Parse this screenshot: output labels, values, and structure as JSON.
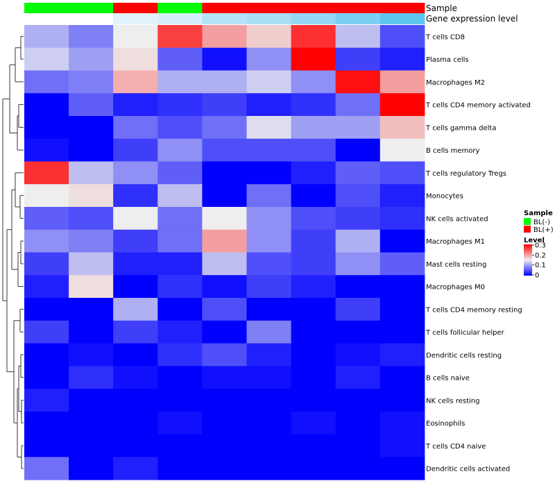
{
  "chart_data": {
    "type": "heatmap",
    "annotations": {
      "sample": {
        "label": "Sample",
        "values": [
          "BL(-)",
          "BL(-)",
          "BL(+)",
          "BL(-)",
          "BL(+)",
          "BL(+)",
          "BL(+)",
          "BL(+)",
          "BL(+)"
        ]
      },
      "gene_expression_level": {
        "label": "Gene expression level",
        "colors": [
          "#ffffff",
          "#ffffff",
          "#e2f2fb",
          "#d5effb",
          "#b5e3f7",
          "#a9def5",
          "#95d7f4",
          "#7ccff2",
          "#5ec5ef"
        ]
      }
    },
    "rows": [
      "T cells CD8",
      "Plasma cells",
      "Macrophages M2",
      "T cells CD4 memory activated",
      "T cells gamma delta",
      "B cells memory",
      "T cells regulatory  Tregs",
      "Monocytes",
      "NK cells activated",
      "Macrophages M1",
      "Mast cells resting",
      "Macrophages M0",
      "T cells CD4 memory resting",
      "T cells follicular helper",
      "Dendritic cells resting",
      "B cells naive",
      "NK cells resting",
      "Eosinophils",
      "T cells CD4 naive",
      "Dendritic cells activated"
    ],
    "values": [
      [
        0.11,
        0.08,
        0.15,
        0.26,
        0.2,
        0.17,
        0.27,
        0.12,
        0.05
      ],
      [
        0.13,
        0.1,
        0.16,
        0.06,
        0.01,
        0.09,
        0.3,
        0.04,
        0.02
      ],
      [
        0.07,
        0.08,
        0.19,
        0.11,
        0.11,
        0.13,
        0.09,
        0.29,
        0.2
      ],
      [
        0.0,
        0.06,
        0.02,
        0.03,
        0.04,
        0.02,
        0.03,
        0.07,
        0.3
      ],
      [
        0.0,
        0.0,
        0.07,
        0.05,
        0.07,
        0.14,
        0.1,
        0.1,
        0.18
      ],
      [
        0.01,
        0.0,
        0.04,
        0.09,
        0.05,
        0.05,
        0.05,
        0.0,
        0.15
      ],
      [
        0.27,
        0.12,
        0.09,
        0.06,
        0.0,
        0.0,
        0.02,
        0.06,
        0.05
      ],
      [
        0.15,
        0.16,
        0.03,
        0.12,
        0.0,
        0.07,
        0.0,
        0.05,
        0.02
      ],
      [
        0.06,
        0.05,
        0.15,
        0.07,
        0.15,
        0.09,
        0.05,
        0.04,
        0.03
      ],
      [
        0.09,
        0.08,
        0.04,
        0.07,
        0.2,
        0.09,
        0.04,
        0.11,
        0.0
      ],
      [
        0.04,
        0.12,
        0.02,
        0.02,
        0.12,
        0.05,
        0.04,
        0.09,
        0.06
      ],
      [
        0.02,
        0.16,
        0.0,
        0.03,
        0.01,
        0.04,
        0.02,
        0.0,
        0.0
      ],
      [
        0.0,
        0.0,
        0.11,
        0.0,
        0.05,
        0.0,
        0.0,
        0.04,
        0.0
      ],
      [
        0.04,
        0.0,
        0.04,
        0.02,
        0.0,
        0.08,
        0.0,
        0.0,
        0.0
      ],
      [
        0.0,
        0.01,
        0.0,
        0.03,
        0.05,
        0.02,
        0.0,
        0.01,
        0.02
      ],
      [
        0.0,
        0.03,
        0.01,
        0.0,
        0.01,
        0.01,
        0.0,
        0.02,
        0.0
      ],
      [
        0.02,
        0.0,
        0.0,
        0.0,
        0.0,
        0.0,
        0.0,
        0.0,
        0.0
      ],
      [
        0.0,
        0.0,
        0.0,
        0.01,
        0.0,
        0.0,
        0.01,
        0.0,
        0.01
      ],
      [
        0.0,
        0.0,
        0.0,
        0.0,
        0.0,
        0.0,
        0.0,
        0.0,
        0.01
      ],
      [
        0.07,
        0.0,
        0.02,
        0.0,
        0.0,
        0.0,
        0.0,
        0.0,
        0.0
      ]
    ],
    "color_scale": {
      "low": "#0000ff",
      "mid": "#eeeeee",
      "high": "#ff0000",
      "midpoint": 0.15,
      "range": [
        0,
        0.3
      ]
    },
    "legend": {
      "sample": {
        "title": "Sample",
        "items": [
          {
            "label": "BL(-)",
            "color": "#00ff00"
          },
          {
            "label": "BL(+)",
            "color": "#ff0000"
          }
        ]
      },
      "level": {
        "title": "Level",
        "ticks": [
          "0.3",
          "0.2",
          "0.1",
          "0"
        ]
      },
      "placement": "right"
    },
    "dendrogram": {
      "side": "left"
    },
    "grid": false
  }
}
